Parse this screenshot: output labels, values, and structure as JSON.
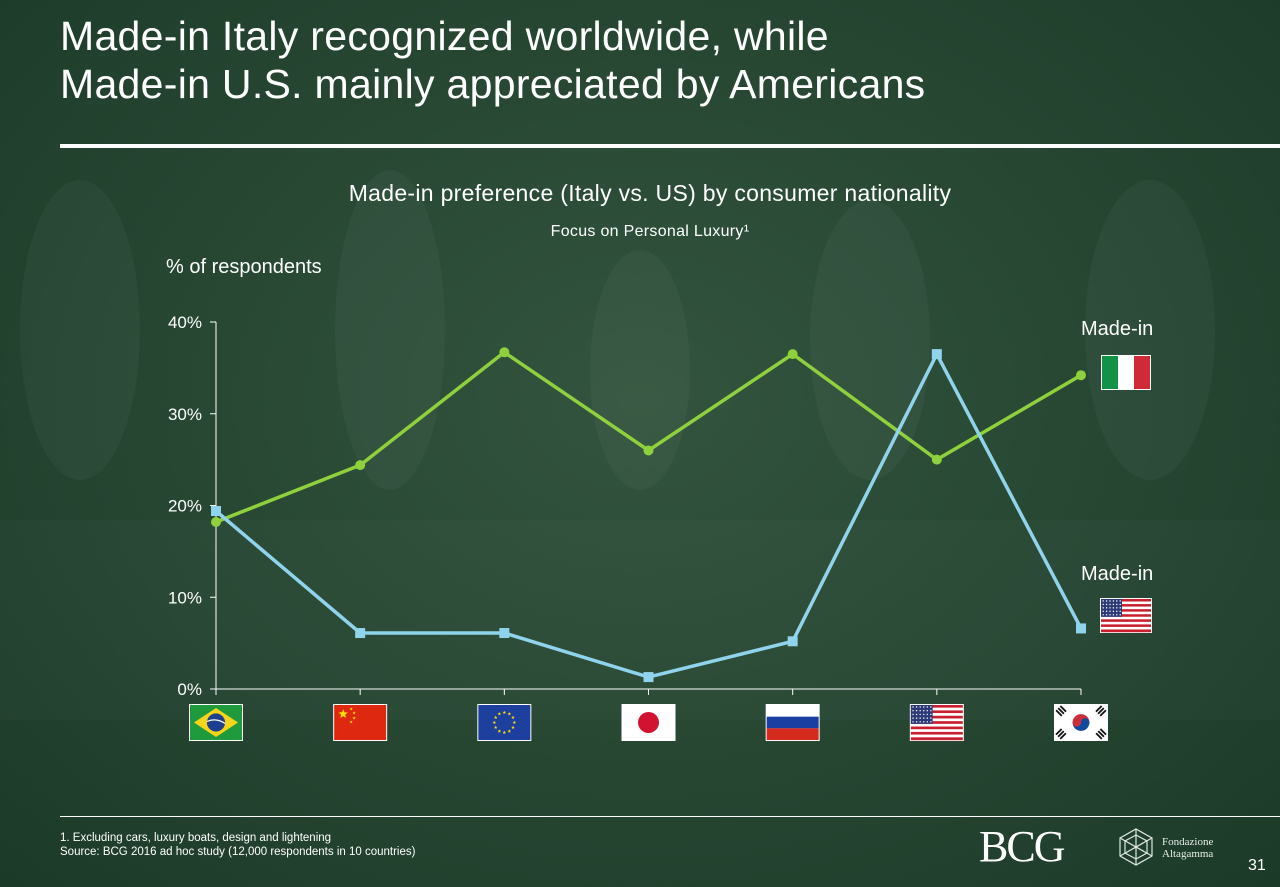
{
  "slide": {
    "title_line1": "Made-in Italy recognized worldwide, while",
    "title_line2": "Made-in U.S. mainly appreciated by Americans",
    "page_number": "31"
  },
  "chart_data": {
    "type": "line",
    "title": "Made-in preference (Italy vs. US) by consumer nationality",
    "subtitle": "Focus on Personal Luxury¹",
    "ylabel": "% of respondents",
    "ylim": [
      0,
      40
    ],
    "yticks": [
      "0%",
      "10%",
      "20%",
      "30%",
      "40%"
    ],
    "ytick_values": [
      0,
      10,
      20,
      30,
      40
    ],
    "grid": false,
    "categories": [
      "Brazil",
      "China",
      "Europe",
      "Japan",
      "Russia",
      "United States",
      "South Korea"
    ],
    "category_icons": [
      "flag-brazil",
      "flag-china",
      "flag-eu",
      "flag-japan",
      "flag-russia",
      "flag-usa",
      "flag-south-korea"
    ],
    "series": [
      {
        "name": "Made-in",
        "flag": "flag-italy",
        "color": "#8ed13c",
        "marker": "circle",
        "values": [
          18.2,
          24.4,
          36.7,
          26.0,
          36.5,
          25.0,
          34.2
        ]
      },
      {
        "name": "Made-in",
        "flag": "flag-usa",
        "color": "#8fd3ec",
        "marker": "square",
        "values": [
          19.4,
          6.1,
          6.1,
          1.3,
          5.2,
          36.5,
          6.6
        ]
      }
    ]
  },
  "footer": {
    "note1": "1. Excluding cars, luxury boats, design and lightening",
    "source": "Source: BCG 2016 ad hoc study (12,000 respondents in 10 countries)",
    "bcg_logo_text": "BCG",
    "fa_line1": "Fondazione",
    "fa_line2": "Altagamma"
  }
}
